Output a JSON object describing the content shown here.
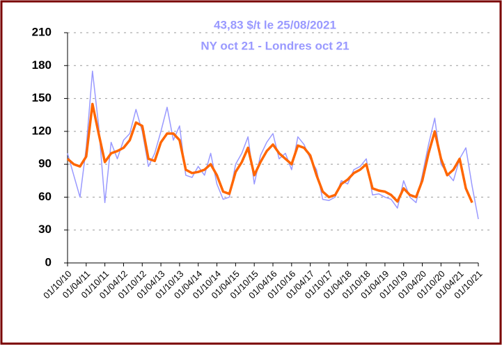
{
  "chart_data": {
    "type": "line",
    "title": "43,83 $/t le 25/08/2021",
    "subtitle": "NY oct 21 - Londres oct 21",
    "categories": [
      "01/10/10",
      null,
      null,
      "01/04/11",
      null,
      null,
      "01/10/11",
      null,
      null,
      "01/04/12",
      null,
      null,
      "01/10/12",
      null,
      null,
      "01/04/13",
      null,
      null,
      "01/10/13",
      null,
      null,
      "01/04/14",
      null,
      null,
      "01/10/14",
      null,
      null,
      "01/04/15",
      null,
      null,
      "01/10/15",
      null,
      null,
      "01/04/16",
      null,
      null,
      "01/10/16",
      null,
      null,
      "01/04/17",
      null,
      null,
      "01/10/17",
      null,
      null,
      "01/04/18",
      null,
      null,
      "01/10/18",
      null,
      null,
      "01/04/19",
      null,
      null,
      "01/10/19",
      null,
      null,
      "01/04/20",
      null,
      null,
      "01/10/20",
      null,
      null,
      "01/04/21",
      null,
      null,
      "01/10/21"
    ],
    "series": [
      {
        "color": "#9999ff",
        "values": [
          100,
          80,
          60,
          105,
          175,
          125,
          55,
          110,
          95,
          112,
          118,
          140,
          120,
          88,
          100,
          120,
          142,
          112,
          125,
          80,
          78,
          88,
          80,
          100,
          72,
          58,
          60,
          90,
          100,
          115,
          72,
          98,
          110,
          118,
          95,
          100,
          85,
          115,
          108,
          95,
          85,
          58,
          57,
          60,
          75,
          72,
          85,
          88,
          95,
          62,
          63,
          60,
          58,
          50,
          75,
          60,
          55,
          80,
          108,
          132,
          90,
          82,
          75,
          95,
          105,
          70,
          40
        ]
      },
      {
        "color": "#ff6600",
        "values": [
          95,
          90,
          88,
          97,
          145,
          118,
          92,
          100,
          102,
          105,
          112,
          128,
          125,
          95,
          93,
          110,
          118,
          118,
          112,
          85,
          82,
          83,
          85,
          90,
          80,
          65,
          63,
          83,
          92,
          105,
          80,
          92,
          102,
          108,
          100,
          95,
          90,
          107,
          105,
          98,
          80,
          65,
          60,
          62,
          72,
          76,
          82,
          85,
          90,
          68,
          66,
          65,
          62,
          56,
          68,
          62,
          60,
          75,
          100,
          120,
          95,
          80,
          85,
          95,
          68,
          55,
          null
        ]
      }
    ],
    "ylim": [
      0,
      210
    ],
    "yticks": [
      0,
      30,
      60,
      90,
      120,
      150,
      180,
      210
    ],
    "grid": true
  }
}
